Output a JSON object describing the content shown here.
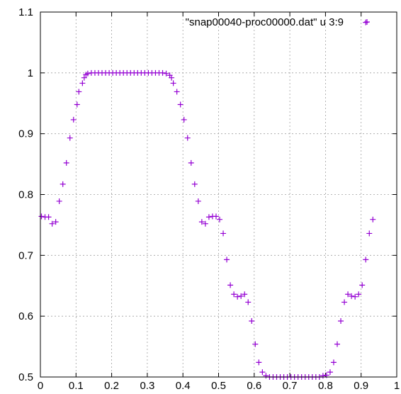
{
  "chart_data": {
    "type": "scatter",
    "title": "",
    "xlabel": "",
    "ylabel": "",
    "xlim": [
      0,
      1
    ],
    "ylim": [
      0.5,
      1.1
    ],
    "x_ticks": [
      "0",
      "0.1",
      "0.2",
      "0.3",
      "0.4",
      "0.5",
      "0.6",
      "0.7",
      "0.8",
      "0.9",
      "1"
    ],
    "y_ticks": [
      "0.5",
      "0.6",
      "0.7",
      "0.8",
      "0.9",
      "1",
      "1.1"
    ],
    "x_tick_values": [
      0,
      0.1,
      0.2,
      0.3,
      0.4,
      0.5,
      0.6,
      0.7,
      0.8,
      0.9,
      1.0
    ],
    "y_tick_values": [
      0.5,
      0.6,
      0.7,
      0.8,
      0.9,
      1.0,
      1.1
    ],
    "grid": true,
    "legend_position": "top-right",
    "series": [
      {
        "name": "\"snap00040-proc00000.dat\" u 3:9",
        "color": "#9400d3",
        "marker": "plus",
        "points": [
          [
            0.003,
            0.764
          ],
          [
            0.013,
            0.763
          ],
          [
            0.023,
            0.763
          ],
          [
            0.033,
            0.752
          ],
          [
            0.043,
            0.755
          ],
          [
            0.053,
            0.789
          ],
          [
            0.063,
            0.817
          ],
          [
            0.073,
            0.852
          ],
          [
            0.083,
            0.893
          ],
          [
            0.093,
            0.923
          ],
          [
            0.103,
            0.948
          ],
          [
            0.108,
            0.969
          ],
          [
            0.118,
            0.983
          ],
          [
            0.123,
            0.992
          ],
          [
            0.128,
            0.997
          ],
          [
            0.133,
            0.999
          ],
          [
            0.143,
            1.0
          ],
          [
            0.153,
            1.0
          ],
          [
            0.163,
            1.0
          ],
          [
            0.173,
            1.0
          ],
          [
            0.183,
            1.0
          ],
          [
            0.193,
            1.0
          ],
          [
            0.203,
            1.0
          ],
          [
            0.213,
            1.0
          ],
          [
            0.223,
            1.0
          ],
          [
            0.233,
            1.0
          ],
          [
            0.243,
            1.0
          ],
          [
            0.253,
            1.0
          ],
          [
            0.263,
            1.0
          ],
          [
            0.273,
            1.0
          ],
          [
            0.283,
            1.0
          ],
          [
            0.293,
            1.0
          ],
          [
            0.303,
            1.0
          ],
          [
            0.313,
            1.0
          ],
          [
            0.323,
            1.0
          ],
          [
            0.333,
            1.0
          ],
          [
            0.343,
            1.0
          ],
          [
            0.353,
            0.999
          ],
          [
            0.363,
            0.996
          ],
          [
            0.368,
            0.992
          ],
          [
            0.373,
            0.983
          ],
          [
            0.383,
            0.969
          ],
          [
            0.393,
            0.948
          ],
          [
            0.403,
            0.923
          ],
          [
            0.413,
            0.893
          ],
          [
            0.423,
            0.852
          ],
          [
            0.433,
            0.817
          ],
          [
            0.443,
            0.789
          ],
          [
            0.453,
            0.755
          ],
          [
            0.463,
            0.752
          ],
          [
            0.473,
            0.763
          ],
          [
            0.483,
            0.764
          ],
          [
            0.493,
            0.764
          ],
          [
            0.503,
            0.759
          ],
          [
            0.513,
            0.736
          ],
          [
            0.523,
            0.693
          ],
          [
            0.533,
            0.651
          ],
          [
            0.543,
            0.636
          ],
          [
            0.553,
            0.632
          ],
          [
            0.563,
            0.633
          ],
          [
            0.573,
            0.636
          ],
          [
            0.583,
            0.623
          ],
          [
            0.593,
            0.592
          ],
          [
            0.603,
            0.554
          ],
          [
            0.613,
            0.524
          ],
          [
            0.623,
            0.508
          ],
          [
            0.633,
            0.502
          ],
          [
            0.643,
            0.5
          ],
          [
            0.653,
            0.5
          ],
          [
            0.663,
            0.5
          ],
          [
            0.673,
            0.5
          ],
          [
            0.683,
            0.5
          ],
          [
            0.693,
            0.5
          ],
          [
            0.703,
            0.5
          ],
          [
            0.713,
            0.5
          ],
          [
            0.723,
            0.5
          ],
          [
            0.733,
            0.5
          ],
          [
            0.743,
            0.5
          ],
          [
            0.753,
            0.5
          ],
          [
            0.763,
            0.5
          ],
          [
            0.773,
            0.5
          ],
          [
            0.783,
            0.5
          ],
          [
            0.793,
            0.502
          ],
          [
            0.803,
            0.503
          ],
          [
            0.813,
            0.508
          ],
          [
            0.823,
            0.524
          ],
          [
            0.833,
            0.554
          ],
          [
            0.843,
            0.592
          ],
          [
            0.853,
            0.623
          ],
          [
            0.863,
            0.636
          ],
          [
            0.873,
            0.633
          ],
          [
            0.883,
            0.632
          ],
          [
            0.893,
            0.636
          ],
          [
            0.903,
            0.651
          ],
          [
            0.913,
            0.693
          ],
          [
            0.923,
            0.736
          ],
          [
            0.933,
            0.759
          ],
          [
            0.913,
            1.083
          ]
        ]
      }
    ]
  }
}
